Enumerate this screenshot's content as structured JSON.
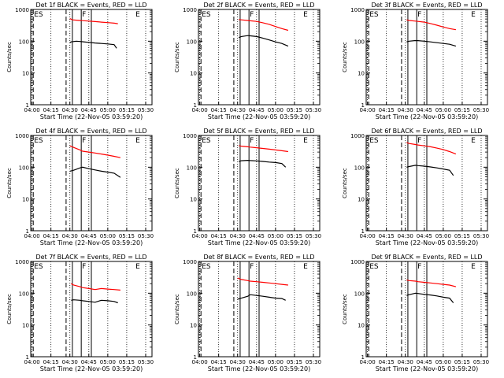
{
  "layout": {
    "rows": 3,
    "cols": 3
  },
  "chart_data": [
    {
      "type": "line",
      "title": "Det 1f BLACK = Events, RED = LLD",
      "xlabel": "Start Time (22-Nov-05 03:59:20)",
      "ylabel": "Counts/sec",
      "y_scale": "log",
      "ylim": [
        1,
        1000
      ],
      "y_ticks": [
        "1",
        "10",
        "100",
        "1000"
      ],
      "x_ticks": [
        "04:00",
        "04:15",
        "04:30",
        "04:45",
        "05:00",
        "05:15",
        "05:30"
      ],
      "annotations": [
        "ES",
        "F",
        "E"
      ],
      "series": [
        {
          "color": "#ff0000",
          "x": [
            30,
            32,
            35,
            38,
            40,
            45,
            50,
            55,
            60,
            65,
            68
          ],
          "y": [
            520,
            470,
            460,
            450,
            445,
            430,
            415,
            400,
            385,
            370,
            355
          ]
        },
        {
          "color": "#000000",
          "x": [
            30,
            31,
            35,
            38,
            40,
            45,
            50,
            55,
            60,
            65,
            67
          ],
          "y": [
            90,
            95,
            100,
            98,
            96,
            92,
            88,
            85,
            82,
            78,
            60
          ]
        }
      ]
    },
    {
      "type": "line",
      "title": "Det 2f BLACK = Events, RED = LLD",
      "xlabel": "Start Time (22-Nov-05 03:59:20)",
      "ylabel": "Counts/sec",
      "y_scale": "log",
      "ylim": [
        1,
        1000
      ],
      "y_ticks": [
        "1",
        "10",
        "100",
        "1000"
      ],
      "x_ticks": [
        "04:00",
        "04:15",
        "04:30",
        "04:45",
        "05:00",
        "05:15",
        "05:30"
      ],
      "annotations": [
        "ES",
        "F",
        "E"
      ],
      "series": [
        {
          "color": "#ff0000",
          "x": [
            31,
            33,
            38,
            40,
            45,
            50,
            55,
            60,
            65,
            70
          ],
          "y": [
            480,
            470,
            450,
            440,
            420,
            380,
            340,
            290,
            250,
            220
          ]
        },
        {
          "color": "#000000",
          "x": [
            31,
            33,
            38,
            40,
            45,
            50,
            55,
            60,
            65,
            70
          ],
          "y": [
            130,
            140,
            150,
            148,
            140,
            125,
            110,
            95,
            85,
            70
          ]
        }
      ]
    },
    {
      "type": "line",
      "title": "Det 3f BLACK = Events, RED = LLD",
      "xlabel": "Start Time (22-Nov-05 03:59:20)",
      "ylabel": "Counts/sec",
      "y_scale": "log",
      "ylim": [
        1,
        1000
      ],
      "y_ticks": [
        "1",
        "10",
        "100",
        "1000"
      ],
      "x_ticks": [
        "04:00",
        "04:15",
        "04:30",
        "04:45",
        "05:00",
        "05:15",
        "05:30"
      ],
      "annotations": [
        "ES",
        "F",
        "E"
      ],
      "series": [
        {
          "color": "#ff0000",
          "x": [
            31,
            33,
            38,
            40,
            45,
            50,
            55,
            60,
            65,
            70
          ],
          "y": [
            470,
            450,
            430,
            420,
            400,
            360,
            320,
            280,
            250,
            230
          ]
        },
        {
          "color": "#000000",
          "x": [
            31,
            33,
            38,
            40,
            45,
            50,
            55,
            60,
            65,
            70
          ],
          "y": [
            95,
            100,
            105,
            104,
            100,
            95,
            90,
            85,
            80,
            70
          ]
        }
      ]
    },
    {
      "type": "line",
      "title": "Det 4f BLACK = Events, RED = LLD",
      "xlabel": "Start Time (22-Nov-05 03:59:20)",
      "ylabel": "Counts/sec",
      "y_scale": "log",
      "ylim": [
        1,
        1000
      ],
      "y_ticks": [
        "1",
        "10",
        "100",
        "1000"
      ],
      "x_ticks": [
        "04:00",
        "04:15",
        "04:30",
        "04:45",
        "05:00",
        "05:15",
        "05:30"
      ],
      "annotations": [
        "ES",
        "F",
        "E"
      ],
      "series": [
        {
          "color": "#ff0000",
          "x": [
            30,
            33,
            38,
            40,
            45,
            50,
            55,
            60,
            65,
            70
          ],
          "y": [
            470,
            420,
            350,
            320,
            300,
            280,
            260,
            240,
            220,
            200
          ]
        },
        {
          "color": "#000000",
          "x": [
            30,
            33,
            38,
            40,
            45,
            50,
            55,
            60,
            65,
            70
          ],
          "y": [
            75,
            80,
            95,
            100,
            90,
            82,
            75,
            70,
            65,
            48
          ]
        }
      ]
    },
    {
      "type": "line",
      "title": "Det 5f BLACK = Events, RED = LLD",
      "xlabel": "Start Time (22-Nov-05 03:59:20)",
      "ylabel": "Counts/sec",
      "y_scale": "log",
      "ylim": [
        1,
        1000
      ],
      "y_ticks": [
        "1",
        "10",
        "100",
        "1000"
      ],
      "x_ticks": [
        "04:00",
        "04:15",
        "04:30",
        "04:45",
        "05:00",
        "05:15",
        "05:30"
      ],
      "annotations": [
        "ES",
        "F",
        "E"
      ],
      "series": [
        {
          "color": "#ff0000",
          "x": [
            31,
            33,
            38,
            40,
            45,
            50,
            55,
            60,
            65,
            70
          ],
          "y": [
            480,
            460,
            440,
            430,
            410,
            390,
            370,
            350,
            330,
            310
          ]
        },
        {
          "color": "#000000",
          "x": [
            31,
            33,
            38,
            40,
            45,
            50,
            55,
            60,
            65,
            68
          ],
          "y": [
            150,
            160,
            165,
            162,
            158,
            152,
            145,
            140,
            130,
            100
          ]
        }
      ]
    },
    {
      "type": "line",
      "title": "Det 6f BLACK = Events, RED = LLD",
      "xlabel": "Start Time (22-Nov-05 03:59:20)",
      "ylabel": "Counts/sec",
      "y_scale": "log",
      "ylim": [
        1,
        1000
      ],
      "y_ticks": [
        "1",
        "10",
        "100",
        "1000"
      ],
      "x_ticks": [
        "04:00",
        "04:15",
        "04:30",
        "04:45",
        "05:00",
        "05:15",
        "05:30"
      ],
      "annotations": [
        "ES",
        "F",
        "E"
      ],
      "series": [
        {
          "color": "#ff0000",
          "x": [
            31,
            33,
            38,
            40,
            45,
            50,
            55,
            60,
            65,
            70
          ],
          "y": [
            600,
            560,
            520,
            500,
            470,
            440,
            400,
            360,
            310,
            260
          ]
        },
        {
          "color": "#000000",
          "x": [
            31,
            33,
            38,
            40,
            45,
            50,
            55,
            60,
            65,
            68
          ],
          "y": [
            100,
            105,
            115,
            112,
            108,
            102,
            95,
            88,
            80,
            55
          ]
        }
      ]
    },
    {
      "type": "line",
      "title": "Det 7f BLACK = Events, RED = LLD",
      "xlabel": "Start Time (22-Nov-05 03:59:20)",
      "ylabel": "Counts/sec",
      "y_scale": "log",
      "ylim": [
        1,
        1000
      ],
      "y_ticks": [
        "1",
        "10",
        "100",
        "1000"
      ],
      "x_ticks": [
        "04:00",
        "04:15",
        "04:30",
        "04:45",
        "05:00",
        "05:15",
        "05:30"
      ],
      "annotations": [
        "ES",
        "F",
        "E"
      ],
      "series": [
        {
          "color": "#ff0000",
          "x": [
            31,
            33,
            38,
            40,
            45,
            50,
            55,
            60,
            65,
            70
          ],
          "y": [
            200,
            180,
            160,
            150,
            140,
            130,
            140,
            135,
            130,
            125
          ]
        },
        {
          "color": "#000000",
          "x": [
            31,
            33,
            38,
            40,
            45,
            50,
            55,
            60,
            65,
            68
          ],
          "y": [
            60,
            62,
            60,
            58,
            55,
            52,
            60,
            58,
            55,
            50
          ]
        }
      ]
    },
    {
      "type": "line",
      "title": "Det 8f BLACK = Events, RED = LLD",
      "xlabel": "Start Time (22-Nov-05 03:59:20)",
      "ylabel": "Counts/sec",
      "y_scale": "log",
      "ylim": [
        1,
        1000
      ],
      "y_ticks": [
        "1",
        "10",
        "100",
        "1000"
      ],
      "x_ticks": [
        "04:00",
        "04:15",
        "04:30",
        "04:45",
        "05:00",
        "05:15",
        "05:30"
      ],
      "annotations": [
        "ES",
        "F",
        "E"
      ],
      "series": [
        {
          "color": "#ff0000",
          "x": [
            30,
            33,
            38,
            40,
            45,
            50,
            55,
            60,
            65,
            70
          ],
          "y": [
            300,
            270,
            250,
            240,
            230,
            220,
            210,
            200,
            190,
            180
          ]
        },
        {
          "color": "#000000",
          "x": [
            30,
            33,
            38,
            40,
            45,
            50,
            55,
            60,
            65,
            68
          ],
          "y": [
            65,
            70,
            80,
            90,
            85,
            80,
            75,
            70,
            68,
            60
          ]
        }
      ]
    },
    {
      "type": "line",
      "title": "Det 9f BLACK = Events, RED = LLD",
      "xlabel": "Start Time (22-Nov-05 03:59:20)",
      "ylabel": "Counts/sec",
      "y_scale": "log",
      "ylim": [
        1,
        1000
      ],
      "y_ticks": [
        "1",
        "10",
        "100",
        "1000"
      ],
      "x_ticks": [
        "04:00",
        "04:15",
        "04:30",
        "04:45",
        "05:00",
        "05:15",
        "05:30"
      ],
      "annotations": [
        "ES",
        "F",
        "E"
      ],
      "series": [
        {
          "color": "#ff0000",
          "x": [
            31,
            33,
            38,
            40,
            45,
            50,
            55,
            60,
            65,
            70
          ],
          "y": [
            260,
            250,
            240,
            230,
            220,
            210,
            200,
            190,
            180,
            160
          ]
        },
        {
          "color": "#000000",
          "x": [
            31,
            33,
            38,
            40,
            45,
            50,
            55,
            60,
            65,
            68
          ],
          "y": [
            85,
            90,
            100,
            98,
            92,
            88,
            82,
            75,
            70,
            50
          ]
        }
      ]
    }
  ]
}
